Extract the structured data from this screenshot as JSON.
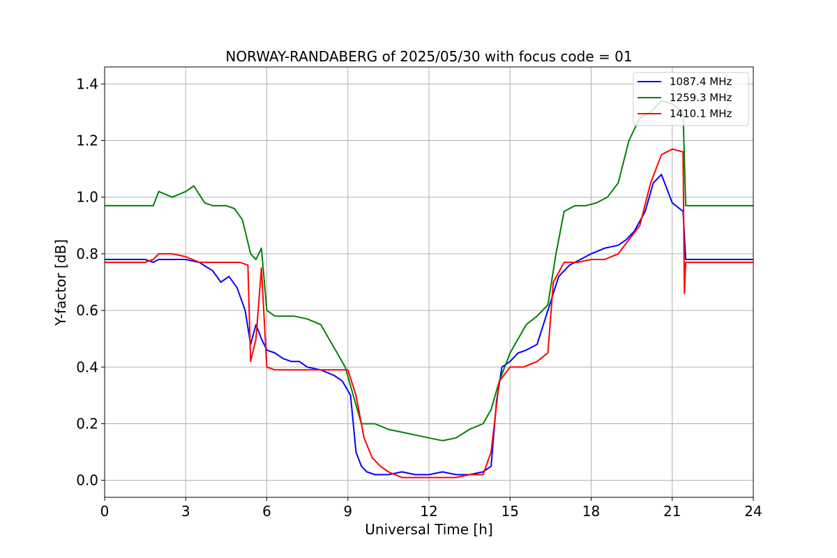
{
  "chart_data": {
    "type": "line",
    "title": "NORWAY-RANDABERG of 2025/05/30 with focus code = 01",
    "xlabel": "Universal Time [h]",
    "ylabel": "Y-factor [dB]",
    "xlim": [
      0,
      24
    ],
    "ylim": [
      -0.06,
      1.46
    ],
    "xticks": [
      0,
      3,
      6,
      9,
      12,
      15,
      18,
      21,
      24
    ],
    "yticks": [
      0.0,
      0.2,
      0.4,
      0.6,
      0.8,
      1.0,
      1.2,
      1.4
    ],
    "grid": true,
    "legend_position": "top-right",
    "series": [
      {
        "name": "1087.4 MHz",
        "color": "#0000ff",
        "x": [
          0,
          0.5,
          1,
          1.5,
          1.8,
          2,
          2.5,
          3,
          3.5,
          4,
          4.3,
          4.6,
          4.9,
          5.2,
          5.4,
          5.6,
          5.8,
          6.0,
          6.3,
          6.6,
          6.9,
          7.2,
          7.5,
          8.0,
          8.5,
          8.8,
          9.1,
          9.3,
          9.5,
          9.7,
          10.0,
          10.5,
          11.0,
          11.5,
          12.0,
          12.5,
          13.0,
          13.5,
          14.0,
          14.3,
          14.5,
          14.7,
          15.0,
          15.3,
          15.6,
          16.0,
          16.4,
          16.8,
          17.2,
          17.6,
          18.0,
          18.5,
          19.0,
          19.3,
          19.6,
          20.0,
          20.3,
          20.6,
          21.0,
          21.4,
          21.5,
          22,
          22.5,
          23,
          23.5,
          24
        ],
        "y": [
          0.78,
          0.78,
          0.78,
          0.78,
          0.77,
          0.78,
          0.78,
          0.78,
          0.77,
          0.74,
          0.7,
          0.72,
          0.68,
          0.6,
          0.48,
          0.55,
          0.5,
          0.46,
          0.45,
          0.43,
          0.42,
          0.42,
          0.4,
          0.39,
          0.37,
          0.35,
          0.3,
          0.1,
          0.05,
          0.03,
          0.02,
          0.02,
          0.03,
          0.02,
          0.02,
          0.03,
          0.02,
          0.02,
          0.03,
          0.05,
          0.28,
          0.4,
          0.42,
          0.45,
          0.46,
          0.48,
          0.6,
          0.72,
          0.76,
          0.78,
          0.8,
          0.82,
          0.83,
          0.85,
          0.88,
          0.95,
          1.05,
          1.08,
          0.98,
          0.95,
          0.78,
          0.78,
          0.78,
          0.78,
          0.78,
          0.78
        ]
      },
      {
        "name": "1259.3 MHz",
        "color": "#008000",
        "x": [
          0,
          0.5,
          1,
          1.5,
          1.8,
          2,
          2.5,
          3,
          3.3,
          3.7,
          4,
          4.5,
          4.8,
          5.1,
          5.4,
          5.6,
          5.8,
          6.0,
          6.3,
          6.6,
          7.0,
          7.5,
          8.0,
          8.3,
          8.6,
          8.9,
          9.2,
          9.5,
          10.0,
          10.5,
          11.0,
          11.5,
          12.0,
          12.5,
          13.0,
          13.5,
          14.0,
          14.3,
          14.6,
          15.0,
          15.3,
          15.6,
          16.0,
          16.4,
          16.7,
          17.0,
          17.4,
          17.8,
          18.2,
          18.6,
          19.0,
          19.4,
          19.8,
          20.2,
          20.6,
          21.0,
          21.4,
          21.5,
          22,
          22.5,
          23,
          23.5,
          24
        ],
        "y": [
          0.97,
          0.97,
          0.97,
          0.97,
          0.97,
          1.02,
          1.0,
          1.02,
          1.04,
          0.98,
          0.97,
          0.97,
          0.96,
          0.92,
          0.8,
          0.78,
          0.82,
          0.6,
          0.58,
          0.58,
          0.58,
          0.57,
          0.55,
          0.5,
          0.45,
          0.4,
          0.3,
          0.2,
          0.2,
          0.18,
          0.17,
          0.16,
          0.15,
          0.14,
          0.15,
          0.18,
          0.2,
          0.25,
          0.35,
          0.45,
          0.5,
          0.55,
          0.58,
          0.62,
          0.8,
          0.95,
          0.97,
          0.97,
          0.98,
          1.0,
          1.05,
          1.2,
          1.28,
          1.3,
          1.34,
          1.33,
          1.3,
          0.97,
          0.97,
          0.97,
          0.97,
          0.97,
          0.97
        ]
      },
      {
        "name": "1410.1 MHz",
        "color": "#ff0000",
        "x": [
          0,
          0.5,
          1,
          1.5,
          1.8,
          2,
          2.5,
          3,
          3.5,
          4,
          4.5,
          5.0,
          5.3,
          5.4,
          5.6,
          5.8,
          6.0,
          6.3,
          6.6,
          7.0,
          7.5,
          8.0,
          8.5,
          9.0,
          9.3,
          9.6,
          9.9,
          10.2,
          10.5,
          11.0,
          11.5,
          12.0,
          12.5,
          13.0,
          13.5,
          14.0,
          14.3,
          14.6,
          15.0,
          15.5,
          16.0,
          16.4,
          16.6,
          17.0,
          17.5,
          18.0,
          18.5,
          19.0,
          19.4,
          19.8,
          20.2,
          20.6,
          21.0,
          21.4,
          21.45,
          21.5,
          22,
          22.5,
          23,
          23.5,
          24
        ],
        "y": [
          0.77,
          0.77,
          0.77,
          0.77,
          0.78,
          0.8,
          0.8,
          0.79,
          0.77,
          0.77,
          0.77,
          0.77,
          0.76,
          0.42,
          0.5,
          0.75,
          0.4,
          0.39,
          0.39,
          0.39,
          0.39,
          0.39,
          0.39,
          0.39,
          0.3,
          0.15,
          0.08,
          0.05,
          0.03,
          0.01,
          0.01,
          0.01,
          0.01,
          0.01,
          0.02,
          0.02,
          0.1,
          0.35,
          0.4,
          0.4,
          0.42,
          0.45,
          0.7,
          0.77,
          0.77,
          0.78,
          0.78,
          0.8,
          0.85,
          0.9,
          1.05,
          1.15,
          1.17,
          1.16,
          0.66,
          0.77,
          0.77,
          0.77,
          0.77,
          0.77,
          0.77
        ]
      }
    ]
  }
}
